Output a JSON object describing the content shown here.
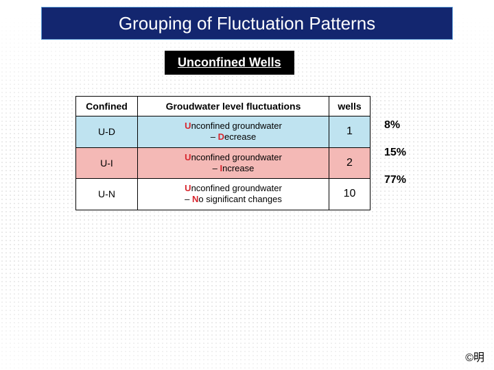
{
  "title": {
    "text": "Grouping of Fluctuation Patterns",
    "bg_color": "#13266f",
    "text_color": "#ffffff",
    "border_color": "#5b9bd5",
    "fontsize": 26
  },
  "subtitle": {
    "text": "Unconfined Wells",
    "bg_color": "#000000",
    "text_color": "#ffffff",
    "fontsize": 18
  },
  "table": {
    "header": {
      "col1": "Confined",
      "col2": "Groudwater level fluctuations",
      "col3": "wells",
      "bg": "#ffffff"
    },
    "rows": [
      {
        "code": "U-D",
        "desc_u": "U",
        "desc_rest1": "nconfined groundwater",
        "desc_dash": " – ",
        "desc_k": "D",
        "desc_rest2": "ecrease",
        "wells": "1",
        "row_bg": "#bfe3f0",
        "letter_color": "#d7262e"
      },
      {
        "code": "U-I",
        "desc_u": "U",
        "desc_rest1": "nconfined groundwater",
        "desc_dash": " – ",
        "desc_k": "I",
        "desc_rest2": "ncrease",
        "wells": "2",
        "row_bg": "#f4b9b6",
        "letter_color": "#d7262e"
      },
      {
        "code": "U-N",
        "desc_u": "U",
        "desc_rest1": "nconfined groundwater",
        "desc_dash": " – ",
        "desc_k": "N",
        "desc_rest2": "o significant changes",
        "wells": "10",
        "row_bg": "#ffffff",
        "letter_color": "#d7262e"
      }
    ],
    "border_color": "#000000"
  },
  "percentages": {
    "row0": "8%",
    "row1": "15%",
    "row2": "77%",
    "color": "#000000",
    "fontsize": 16
  },
  "credit": {
    "text": "©明"
  },
  "background": {
    "dot_color": "#bfbfbf",
    "page_bg": "#ffffff"
  }
}
